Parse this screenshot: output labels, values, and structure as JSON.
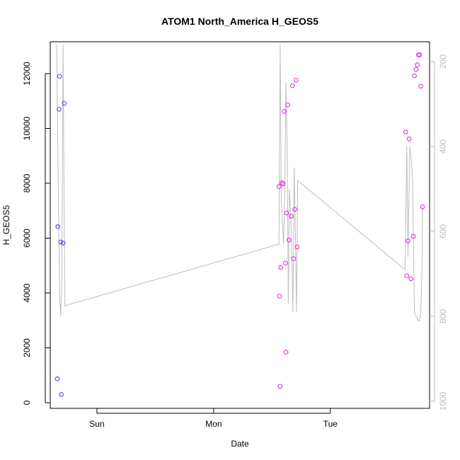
{
  "chart_data": {
    "type": "scatter",
    "title": "ATOM1 North_America H_GEOS5",
    "xlabel": "Date",
    "ylabel": "H_GEOS5",
    "x_ticks": [
      "Sun",
      "Mon",
      "Tue"
    ],
    "x_tick_positions": [
      1.0,
      2.0,
      3.0
    ],
    "xlim": [
      0.6,
      3.85
    ],
    "ylim": [
      0,
      13000
    ],
    "y_ticks": [
      0,
      2000,
      4000,
      6000,
      8000,
      10000,
      12000
    ],
    "y2lim": [
      1000,
      160
    ],
    "y2_ticks": [
      200,
      400,
      600,
      800,
      1000
    ],
    "colors": {
      "line": "#bdbdbd",
      "axis": "#000000",
      "right_axis": "#bdbdbd",
      "point_early": "#6a2bef",
      "point_late": "#e020e0"
    },
    "series": [
      {
        "kind": "points",
        "values": [
          {
            "x": 0.66,
            "y": 870
          },
          {
            "x": 0.665,
            "y": 6420
          },
          {
            "x": 0.675,
            "y": 10700
          },
          {
            "x": 0.68,
            "y": 11900
          },
          {
            "x": 0.69,
            "y": 5860
          },
          {
            "x": 0.695,
            "y": 300
          },
          {
            "x": 0.71,
            "y": 5820
          },
          {
            "x": 0.72,
            "y": 10920
          },
          {
            "x": 2.56,
            "y": 7880
          },
          {
            "x": 2.565,
            "y": 3880
          },
          {
            "x": 2.57,
            "y": 600
          },
          {
            "x": 2.575,
            "y": 4930
          },
          {
            "x": 2.585,
            "y": 8020
          },
          {
            "x": 2.595,
            "y": 7980
          },
          {
            "x": 2.605,
            "y": 10620
          },
          {
            "x": 2.615,
            "y": 5090
          },
          {
            "x": 2.62,
            "y": 1840
          },
          {
            "x": 2.625,
            "y": 6920
          },
          {
            "x": 2.635,
            "y": 10860
          },
          {
            "x": 2.645,
            "y": 5930
          },
          {
            "x": 2.665,
            "y": 6800
          },
          {
            "x": 2.675,
            "y": 11560
          },
          {
            "x": 2.685,
            "y": 5250
          },
          {
            "x": 2.695,
            "y": 7050
          },
          {
            "x": 2.705,
            "y": 11760
          },
          {
            "x": 2.715,
            "y": 5680
          },
          {
            "x": 3.645,
            "y": 9870
          },
          {
            "x": 3.655,
            "y": 4630
          },
          {
            "x": 3.665,
            "y": 5900
          },
          {
            "x": 3.675,
            "y": 9620
          },
          {
            "x": 3.69,
            "y": 4520
          },
          {
            "x": 3.71,
            "y": 6070
          },
          {
            "x": 3.72,
            "y": 11920
          },
          {
            "x": 3.735,
            "y": 12150
          },
          {
            "x": 3.745,
            "y": 12320
          },
          {
            "x": 3.755,
            "y": 12680
          },
          {
            "x": 3.765,
            "y": 12680
          },
          {
            "x": 3.775,
            "y": 11540
          },
          {
            "x": 3.79,
            "y": 7140
          }
        ]
      },
      {
        "kind": "line",
        "axis": "right",
        "values": [
          {
            "x": 0.655,
            "y": 160
          },
          {
            "x": 0.665,
            "y": 410
          },
          {
            "x": 0.68,
            "y": 750
          },
          {
            "x": 0.69,
            "y": 800
          },
          {
            "x": 0.7,
            "y": 700
          },
          {
            "x": 0.71,
            "y": 160
          },
          {
            "x": 0.725,
            "y": 775
          },
          {
            "x": 2.56,
            "y": 630
          },
          {
            "x": 2.57,
            "y": 160
          },
          {
            "x": 2.58,
            "y": 530
          },
          {
            "x": 2.59,
            "y": 580
          },
          {
            "x": 2.6,
            "y": 630
          },
          {
            "x": 2.61,
            "y": 500
          },
          {
            "x": 2.62,
            "y": 250
          },
          {
            "x": 2.63,
            "y": 400
          },
          {
            "x": 2.64,
            "y": 770
          },
          {
            "x": 2.65,
            "y": 500
          },
          {
            "x": 2.66,
            "y": 560
          },
          {
            "x": 2.67,
            "y": 650
          },
          {
            "x": 2.68,
            "y": 790
          },
          {
            "x": 2.69,
            "y": 450
          },
          {
            "x": 2.7,
            "y": 600
          },
          {
            "x": 2.71,
            "y": 790
          },
          {
            "x": 2.72,
            "y": 480
          },
          {
            "x": 3.64,
            "y": 690
          },
          {
            "x": 3.655,
            "y": 400
          },
          {
            "x": 3.665,
            "y": 660
          },
          {
            "x": 3.68,
            "y": 400
          },
          {
            "x": 3.69,
            "y": 420
          },
          {
            "x": 3.705,
            "y": 480
          },
          {
            "x": 3.72,
            "y": 790
          },
          {
            "x": 3.735,
            "y": 800
          },
          {
            "x": 3.75,
            "y": 810
          },
          {
            "x": 3.765,
            "y": 810
          },
          {
            "x": 3.775,
            "y": 790
          },
          {
            "x": 3.785,
            "y": 690
          },
          {
            "x": 3.79,
            "y": 540
          }
        ]
      }
    ]
  }
}
